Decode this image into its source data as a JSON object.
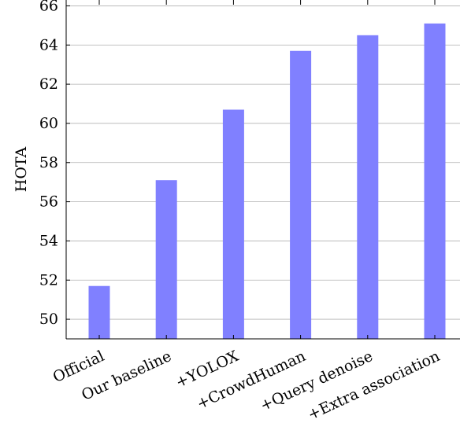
{
  "chart_data": {
    "type": "bar",
    "title": "",
    "xlabel": "",
    "ylabel": "HOTA",
    "categories": [
      "Official",
      "Our baseline",
      "+YOLOX",
      "+CrowdHuman",
      "+Query denoise",
      "+Extra association"
    ],
    "values": [
      51.7,
      57.1,
      60.7,
      63.7,
      64.5,
      65.1
    ],
    "ylim": [
      49,
      66.7
    ],
    "yticks": [
      "50",
      "52",
      "54",
      "56",
      "58",
      "60",
      "62",
      "64",
      "66"
    ],
    "grid": "horizontal",
    "legend": "none",
    "colors": {
      "bar": "#8080ff",
      "grid": "#b0b0b0",
      "axis": "#000000"
    }
  }
}
